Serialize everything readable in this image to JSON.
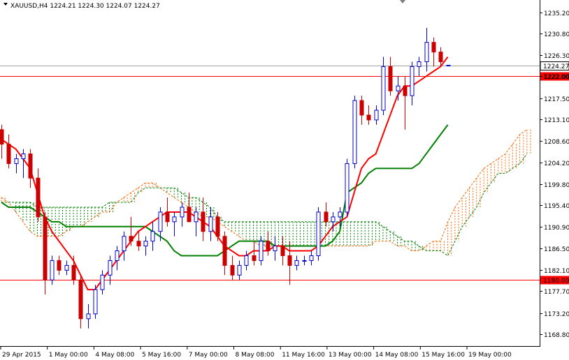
{
  "chart_data": {
    "type": "candlestick",
    "title": "XAUUSD,H4  1224.21 1224.30 1224.07 1224.27",
    "symbol": "XAUUSD,H4",
    "ohlc_header": "1224.21 1224.30 1224.07 1224.27",
    "ylim": [
      1166.8,
      1237.3
    ],
    "y_ticks": [
      "1235.20",
      "1230.80",
      "1226.30",
      "1222.00",
      "1217.50",
      "1213.10",
      "1208.60",
      "1204.20",
      "1199.80",
      "1195.40",
      "1190.90",
      "1186.50",
      "1182.10",
      "1177.70",
      "1173.20",
      "1168.80"
    ],
    "x_ticks": [
      "29 Apr 2015",
      "1 May 00:00",
      "4 May 08:00",
      "5 May 16:00",
      "7 May 00:00",
      "8 May 08:00",
      "11 May 16:00",
      "13 May 00:00",
      "14 May 08:00",
      "15 May 16:00",
      "19 May 00:00"
    ],
    "current_price": {
      "label": "1224.27",
      "value": 1224.27,
      "color": "#000000"
    },
    "horizontal_lines": [
      {
        "label": "1222.00",
        "value": 1222.0,
        "color": "#ff0000"
      },
      {
        "label": "1180.00",
        "value": 1180.0,
        "color": "#ff0000"
      }
    ],
    "colors": {
      "bull": "#0000cc",
      "bear": "#cc0000",
      "tenkan": "#ff0000",
      "kijun": "#008000",
      "senkou_a": "#ff6600",
      "senkou_b": "#008000"
    },
    "candles": [
      [
        1211,
        1212,
        1205,
        1208
      ],
      [
        1208,
        1210,
        1203,
        1204
      ],
      [
        1204,
        1206,
        1202,
        1205
      ],
      [
        1205,
        1207,
        1201,
        1206
      ],
      [
        1206,
        1207,
        1199,
        1201
      ],
      [
        1201,
        1203,
        1192,
        1193
      ],
      [
        1193,
        1194,
        1177,
        1180
      ],
      [
        1180,
        1185,
        1179,
        1184
      ],
      [
        1184,
        1185,
        1181,
        1182
      ],
      [
        1182,
        1184,
        1181,
        1183
      ],
      [
        1183,
        1185,
        1179,
        1180
      ],
      [
        1180,
        1181,
        1170,
        1172
      ],
      [
        1172,
        1175,
        1170,
        1173
      ],
      [
        1173,
        1179,
        1172,
        1178
      ],
      [
        1178,
        1182,
        1177,
        1181
      ],
      [
        1181,
        1185,
        1179,
        1184
      ],
      [
        1184,
        1187,
        1182,
        1186
      ],
      [
        1186,
        1190,
        1184,
        1189
      ],
      [
        1189,
        1193,
        1187,
        1188
      ],
      [
        1188,
        1190,
        1186,
        1187
      ],
      [
        1187,
        1189,
        1185,
        1188
      ],
      [
        1188,
        1192,
        1186,
        1190
      ],
      [
        1190,
        1195,
        1188,
        1194
      ],
      [
        1194,
        1197,
        1191,
        1192
      ],
      [
        1192,
        1194,
        1189,
        1193
      ],
      [
        1193,
        1196,
        1191,
        1195
      ],
      [
        1195,
        1198,
        1192,
        1192
      ],
      [
        1192,
        1195,
        1189,
        1194
      ],
      [
        1194,
        1197,
        1188,
        1190
      ],
      [
        1190,
        1195,
        1188,
        1193
      ],
      [
        1193,
        1194,
        1188,
        1189
      ],
      [
        1189,
        1190,
        1181,
        1183
      ],
      [
        1183,
        1185,
        1180,
        1181
      ],
      [
        1181,
        1184,
        1180,
        1183
      ],
      [
        1183,
        1186,
        1182,
        1185
      ],
      [
        1185,
        1188,
        1183,
        1184
      ],
      [
        1184,
        1189,
        1183,
        1188
      ],
      [
        1188,
        1190,
        1185,
        1186
      ],
      [
        1186,
        1189,
        1184,
        1187
      ],
      [
        1187,
        1189,
        1183,
        1185
      ],
      [
        1185,
        1188,
        1179,
        1183
      ],
      [
        1183,
        1185,
        1182,
        1184
      ],
      [
        1184,
        1185,
        1183,
        1184
      ],
      [
        1184,
        1186,
        1183,
        1185
      ],
      [
        1185,
        1195,
        1184,
        1194
      ],
      [
        1194,
        1196,
        1191,
        1192
      ],
      [
        1192,
        1194,
        1190,
        1193
      ],
      [
        1193,
        1195,
        1191,
        1194
      ],
      [
        1194,
        1205,
        1193,
        1204
      ],
      [
        1204,
        1218,
        1203,
        1217
      ],
      [
        1217,
        1218,
        1212,
        1214
      ],
      [
        1214,
        1216,
        1212,
        1213
      ],
      [
        1213,
        1216,
        1212,
        1215
      ],
      [
        1215,
        1226,
        1214,
        1224
      ],
      [
        1224,
        1226,
        1218,
        1219
      ],
      [
        1219,
        1222,
        1217,
        1220
      ],
      [
        1220,
        1222,
        1211,
        1218
      ],
      [
        1218,
        1225,
        1216,
        1224
      ],
      [
        1224,
        1226,
        1222,
        1225
      ],
      [
        1225,
        1232,
        1223,
        1229
      ],
      [
        1229,
        1230,
        1224,
        1227
      ],
      [
        1227,
        1228,
        1224,
        1225
      ],
      [
        1224.21,
        1224.3,
        1224.07,
        1224.27
      ]
    ],
    "tenkan_sen": [
      1209,
      1208,
      1207,
      1205,
      1203,
      1198,
      1193,
      1190,
      1188,
      1186,
      1184,
      1181,
      1178,
      1178,
      1180,
      1182,
      1184,
      1186,
      1188,
      1190,
      1191,
      1192,
      1193,
      1194,
      1194,
      1194,
      1194,
      1193,
      1192,
      1191,
      1189,
      1187,
      1186,
      1185,
      1185,
      1186,
      1186,
      1186,
      1187,
      1187,
      1186,
      1186,
      1186,
      1186,
      1187,
      1189,
      1191,
      1192,
      1193,
      1198,
      1203,
      1205,
      1206,
      1210,
      1214,
      1218,
      1220,
      1220,
      1221,
      1222,
      1223,
      1224,
      1226
    ],
    "kijun_sen": [
      1196,
      1195,
      1195,
      1195,
      1195,
      1194,
      1193,
      1192,
      1192,
      1191,
      1191,
      1191,
      1191,
      1191,
      1191,
      1191,
      1191,
      1191,
      1191,
      1191,
      1191,
      1190,
      1189,
      1188,
      1186,
      1185,
      1185,
      1185,
      1185,
      1185,
      1185,
      1186,
      1187,
      1188,
      1188,
      1188,
      1188,
      1188,
      1187,
      1187,
      1187,
      1187,
      1187,
      1187,
      1187,
      1187,
      1188,
      1190,
      1198,
      1199,
      1200,
      1202,
      1203,
      1203,
      1203,
      1203,
      1203,
      1203,
      1204,
      1206,
      1208,
      1210,
      1212
    ],
    "senkou_a": [
      1197,
      1196,
      1194,
      1192,
      1190,
      1189,
      1189,
      1189,
      1189,
      1190,
      1191,
      1191,
      1192,
      1193,
      1194,
      1194,
      1196,
      1197,
      1198,
      1199,
      1200,
      1200,
      1199,
      1198,
      1197,
      1196,
      1195,
      1194,
      1193,
      1193,
      1192,
      1191,
      1190,
      1189,
      1188,
      1188,
      1187,
      1187,
      1187,
      1187,
      1187,
      1187,
      1187,
      1187,
      1187,
      1187,
      1187,
      1187,
      1187,
      1187,
      1187,
      1187,
      1188,
      1188,
      1188,
      1187,
      1187,
      1186,
      1186,
      1187,
      1188,
      1188,
      1192,
      1195,
      1197,
      1199,
      1201,
      1203,
      1204,
      1205,
      1206,
      1208,
      1210,
      1211
    ],
    "senkou_b": [
      1196,
      1196,
      1196,
      1196,
      1196,
      1195,
      1195,
      1195,
      1195,
      1195,
      1195,
      1195,
      1195,
      1195,
      1195,
      1196,
      1196,
      1196,
      1196,
      1198,
      1199,
      1199,
      1199,
      1199,
      1199,
      1198,
      1197,
      1197,
      1196,
      1195,
      1193,
      1192,
      1192,
      1192,
      1192,
      1192,
      1192,
      1192,
      1192,
      1192,
      1192,
      1192,
      1192,
      1192,
      1192,
      1192,
      1192,
      1192,
      1192,
      1192,
      1192,
      1192,
      1192,
      1191,
      1190,
      1189,
      1188,
      1188,
      1187,
      1186,
      1186,
      1186,
      1185,
      1188,
      1191,
      1193,
      1195,
      1198,
      1200,
      1202,
      1202,
      1203,
      1204,
      1206
    ]
  }
}
